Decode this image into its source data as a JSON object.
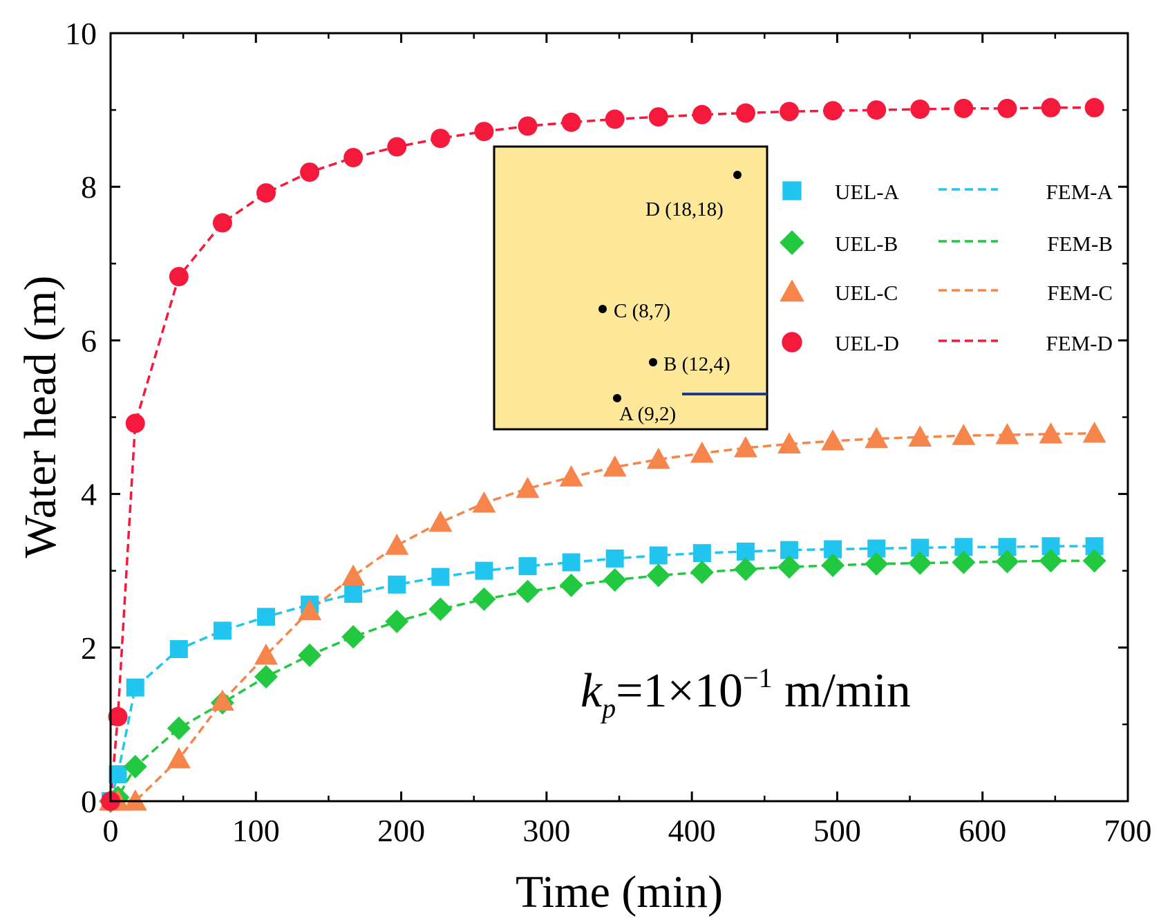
{
  "chart_data": {
    "type": "line",
    "title": "",
    "xlabel": "Time (min)",
    "ylabel": "Water head (m)",
    "xlim": [
      0,
      700
    ],
    "ylim": [
      0,
      10
    ],
    "xticks": [
      0,
      100,
      200,
      300,
      400,
      500,
      600,
      700
    ],
    "yticks": [
      0,
      2,
      4,
      6,
      8,
      10
    ],
    "x": [
      0,
      5,
      17,
      47,
      77,
      107,
      137,
      167,
      197,
      227,
      257,
      287,
      317,
      347,
      377,
      407,
      437,
      467,
      497,
      527,
      557,
      587,
      617,
      647,
      677
    ],
    "series": [
      {
        "name": "UEL-A",
        "kind": "markers",
        "marker": "square",
        "color": "#22c4f0",
        "values": [
          0,
          0.35,
          1.48,
          1.98,
          2.22,
          2.4,
          2.56,
          2.7,
          2.82,
          2.92,
          3.0,
          3.06,
          3.11,
          3.16,
          3.2,
          3.23,
          3.25,
          3.27,
          3.28,
          3.29,
          3.3,
          3.31,
          3.31,
          3.32,
          3.32
        ]
      },
      {
        "name": "UEL-B",
        "kind": "markers",
        "marker": "diamond",
        "color": "#22c940",
        "values": [
          0,
          0.05,
          0.45,
          0.95,
          1.28,
          1.62,
          1.9,
          2.14,
          2.34,
          2.5,
          2.63,
          2.73,
          2.81,
          2.88,
          2.94,
          2.98,
          3.02,
          3.05,
          3.07,
          3.09,
          3.1,
          3.11,
          3.12,
          3.13,
          3.13
        ]
      },
      {
        "name": "UEL-C",
        "kind": "markers",
        "marker": "triangle",
        "color": "#f5854a",
        "values": [
          0,
          0,
          0,
          0.55,
          1.3,
          1.9,
          2.48,
          2.93,
          3.33,
          3.63,
          3.88,
          4.07,
          4.22,
          4.35,
          4.45,
          4.53,
          4.6,
          4.65,
          4.69,
          4.72,
          4.74,
          4.76,
          4.77,
          4.78,
          4.79
        ]
      },
      {
        "name": "UEL-D",
        "kind": "markers",
        "marker": "circle",
        "color": "#f51a3c",
        "values": [
          0,
          1.1,
          4.92,
          6.83,
          7.53,
          7.92,
          8.19,
          8.38,
          8.52,
          8.63,
          8.72,
          8.79,
          8.84,
          8.88,
          8.91,
          8.94,
          8.96,
          8.98,
          8.99,
          9.0,
          9.01,
          9.02,
          9.02,
          9.03,
          9.03
        ]
      },
      {
        "name": "FEM-A",
        "kind": "dashed-line",
        "color": "#22c4f0",
        "values": [
          0,
          0.35,
          1.48,
          1.98,
          2.22,
          2.4,
          2.56,
          2.7,
          2.82,
          2.92,
          3.0,
          3.06,
          3.11,
          3.16,
          3.2,
          3.23,
          3.25,
          3.27,
          3.28,
          3.29,
          3.3,
          3.31,
          3.31,
          3.32,
          3.32
        ]
      },
      {
        "name": "FEM-B",
        "kind": "dashed-line",
        "color": "#22c940",
        "values": [
          0,
          0.05,
          0.45,
          0.95,
          1.28,
          1.62,
          1.9,
          2.14,
          2.34,
          2.5,
          2.63,
          2.73,
          2.81,
          2.88,
          2.94,
          2.98,
          3.02,
          3.05,
          3.07,
          3.09,
          3.1,
          3.11,
          3.12,
          3.13,
          3.13
        ]
      },
      {
        "name": "FEM-C",
        "kind": "dashed-line",
        "color": "#f5854a",
        "values": [
          0,
          0,
          0,
          0.55,
          1.3,
          1.9,
          2.48,
          2.93,
          3.33,
          3.63,
          3.88,
          4.07,
          4.22,
          4.35,
          4.45,
          4.53,
          4.6,
          4.65,
          4.69,
          4.72,
          4.74,
          4.76,
          4.77,
          4.78,
          4.79
        ]
      },
      {
        "name": "FEM-D",
        "kind": "dashed-line",
        "color": "#f51a3c",
        "values": [
          0,
          1.1,
          4.92,
          6.83,
          7.53,
          7.92,
          8.19,
          8.38,
          8.52,
          8.63,
          8.72,
          8.79,
          8.84,
          8.88,
          8.91,
          8.94,
          8.96,
          8.98,
          8.99,
          9.0,
          9.01,
          9.02,
          9.02,
          9.03,
          9.03
        ]
      }
    ],
    "legend": {
      "placement": "right-middle",
      "markers": [
        "UEL-A",
        "UEL-B",
        "UEL-C",
        "UEL-D"
      ],
      "lines": [
        "FEM-A",
        "FEM-B",
        "FEM-C",
        "FEM-D"
      ]
    },
    "annotation": {
      "base": "k",
      "subscript": "p",
      "equals_mantissa": "=1×10",
      "superscript": "−1",
      "unit": " m/min"
    },
    "inset": {
      "background": "#fde89a",
      "border": "#000000",
      "line_color": "#1a3a8c",
      "points": [
        {
          "label": "A (9,2)",
          "px": 9,
          "py": 2
        },
        {
          "label": "B (12,4)",
          "px": 12,
          "py": 4
        },
        {
          "label": "C (8,7)",
          "px": 8,
          "py": 7
        },
        {
          "label": "D (18,18)",
          "px": 18,
          "py": 18
        }
      ]
    }
  }
}
